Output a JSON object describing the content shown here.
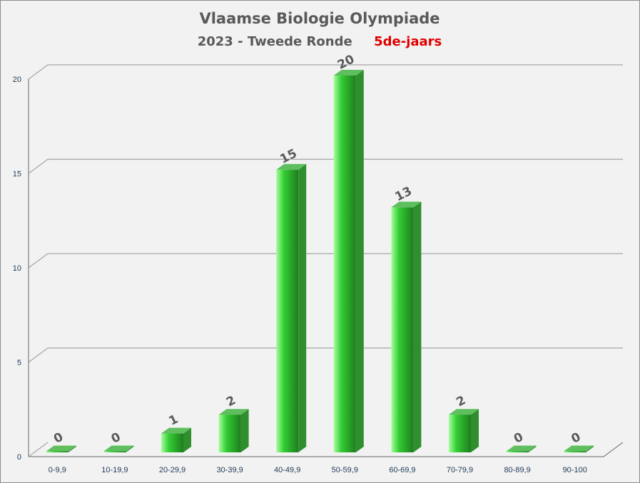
{
  "chart_data": {
    "type": "bar",
    "title": "Vlaamse Biologie Olympiade",
    "subtitle": "2023 - Tweede Ronde",
    "subtitle_highlight": "5de-jaars",
    "categories": [
      "0-9,9",
      "10-19,9",
      "20-29,9",
      "30-39,9",
      "40-49,9",
      "50-59,9",
      "60-69,9",
      "70-79,9",
      "80-89,9",
      "90-100"
    ],
    "values": [
      0,
      0,
      1,
      2,
      15,
      20,
      13,
      2,
      0,
      0
    ],
    "data_labels": [
      "0",
      "0",
      "1",
      "2",
      "15",
      "20",
      "13",
      "2",
      "0",
      "0"
    ],
    "y_ticks": [
      "0",
      "5",
      "10",
      "15",
      "20"
    ],
    "ylim": [
      0,
      20
    ],
    "grid": true,
    "legend": "none",
    "colors": {
      "bar_light": "#a6ff9e",
      "bar_mid": "#33cc33",
      "bar_dark": "#1e7d1e",
      "bar_top": "#5fbf5f",
      "bar_side": "#2f8f2f",
      "highlight": "#e00000",
      "grid": "#a6a6a6"
    }
  }
}
